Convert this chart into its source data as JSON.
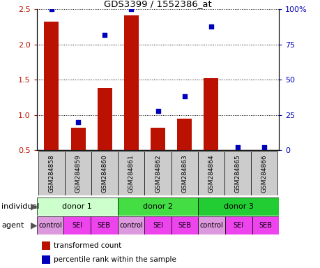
{
  "title": "GDS3399 / 1552386_at",
  "samples": [
    "GSM284858",
    "GSM284859",
    "GSM284860",
    "GSM284861",
    "GSM284862",
    "GSM284863",
    "GSM284864",
    "GSM284865",
    "GSM284866"
  ],
  "bar_values": [
    2.33,
    0.82,
    1.38,
    2.42,
    0.82,
    0.95,
    1.52,
    0.5,
    0.5
  ],
  "scatter_values": [
    100,
    20,
    82,
    100,
    28,
    38,
    88,
    2,
    2
  ],
  "ylim_left": [
    0.5,
    2.5
  ],
  "ylim_right": [
    0,
    100
  ],
  "yticks_left": [
    0.5,
    1.0,
    1.5,
    2.0,
    2.5
  ],
  "yticks_right": [
    0,
    25,
    50,
    75,
    100
  ],
  "yticklabels_right": [
    "0",
    "25",
    "50",
    "75",
    "100%"
  ],
  "bar_color": "#bb1100",
  "scatter_color": "#0000bb",
  "bar_bottom": 0.5,
  "individuals": [
    {
      "label": "donor 1",
      "start": 0,
      "end": 3,
      "color": "#ccffcc"
    },
    {
      "label": "donor 2",
      "start": 3,
      "end": 6,
      "color": "#44dd44"
    },
    {
      "label": "donor 3",
      "start": 6,
      "end": 9,
      "color": "#22cc33"
    }
  ],
  "agents": [
    "control",
    "SEI",
    "SEB",
    "control",
    "SEI",
    "SEB",
    "control",
    "SEI",
    "SEB"
  ],
  "agent_colors": [
    "#dd99dd",
    "#ee44ee",
    "#ee44ee",
    "#dd99dd",
    "#ee44ee",
    "#ee44ee",
    "#dd99dd",
    "#ee44ee",
    "#ee44ee"
  ],
  "sample_bg_color": "#cccccc",
  "grid_yticks": [
    1.0,
    1.5,
    2.0,
    2.5
  ],
  "legend_items": [
    {
      "label": "transformed count",
      "color": "#bb1100"
    },
    {
      "label": "percentile rank within the sample",
      "color": "#0000bb"
    }
  ],
  "label_individual": "individual",
  "label_agent": "agent"
}
